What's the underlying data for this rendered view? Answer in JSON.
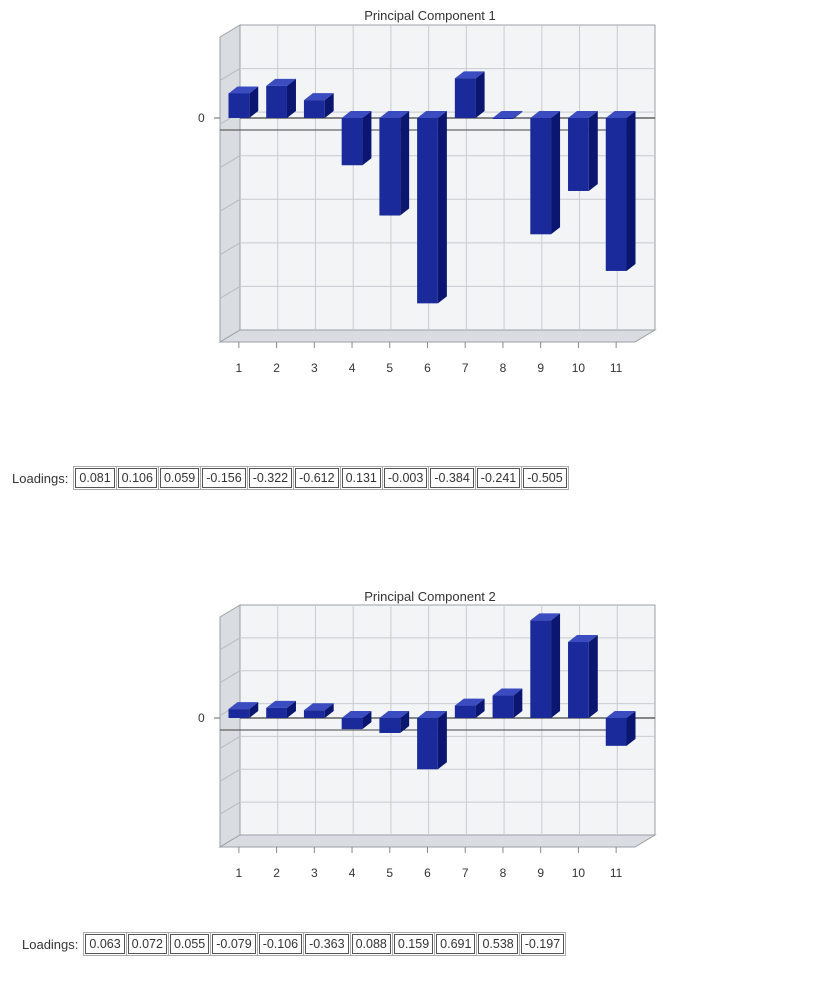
{
  "loadings_label": "Loadings:",
  "chart_data": [
    {
      "type": "bar",
      "title": "Principal Component 1",
      "categories": [
        "1",
        "2",
        "3",
        "4",
        "5",
        "6",
        "7",
        "8",
        "9",
        "10",
        "11"
      ],
      "values": [
        0.081,
        0.106,
        0.059,
        -0.156,
        -0.322,
        -0.612,
        0.131,
        -0.003,
        -0.384,
        -0.241,
        -0.505
      ],
      "value_labels": [
        "0.081",
        "0.106",
        "0.059",
        "-0.156",
        "-0.322",
        "-0.612",
        "0.131",
        "-0.003",
        "-0.384",
        "-0.241",
        "-0.505"
      ],
      "y_tick_label": "0",
      "ylim": [
        -0.7,
        0.2
      ],
      "grid": true,
      "bar_color": "#1a2a9a"
    },
    {
      "type": "bar",
      "title": "Principal Component 2",
      "categories": [
        "1",
        "2",
        "3",
        "4",
        "5",
        "6",
        "7",
        "8",
        "9",
        "10",
        "11"
      ],
      "values": [
        0.063,
        0.072,
        0.055,
        -0.079,
        -0.106,
        -0.363,
        0.088,
        0.159,
        0.691,
        0.538,
        -0.197
      ],
      "value_labels": [
        "0.063",
        "0.072",
        "0.055",
        "-0.079",
        "-0.106",
        "-0.363",
        "0.088",
        "0.159",
        "0.691",
        "0.538",
        "-0.197"
      ],
      "y_tick_label": "0",
      "ylim": [
        -0.6,
        0.8
      ],
      "grid": true,
      "bar_color": "#1a2a9a"
    }
  ]
}
